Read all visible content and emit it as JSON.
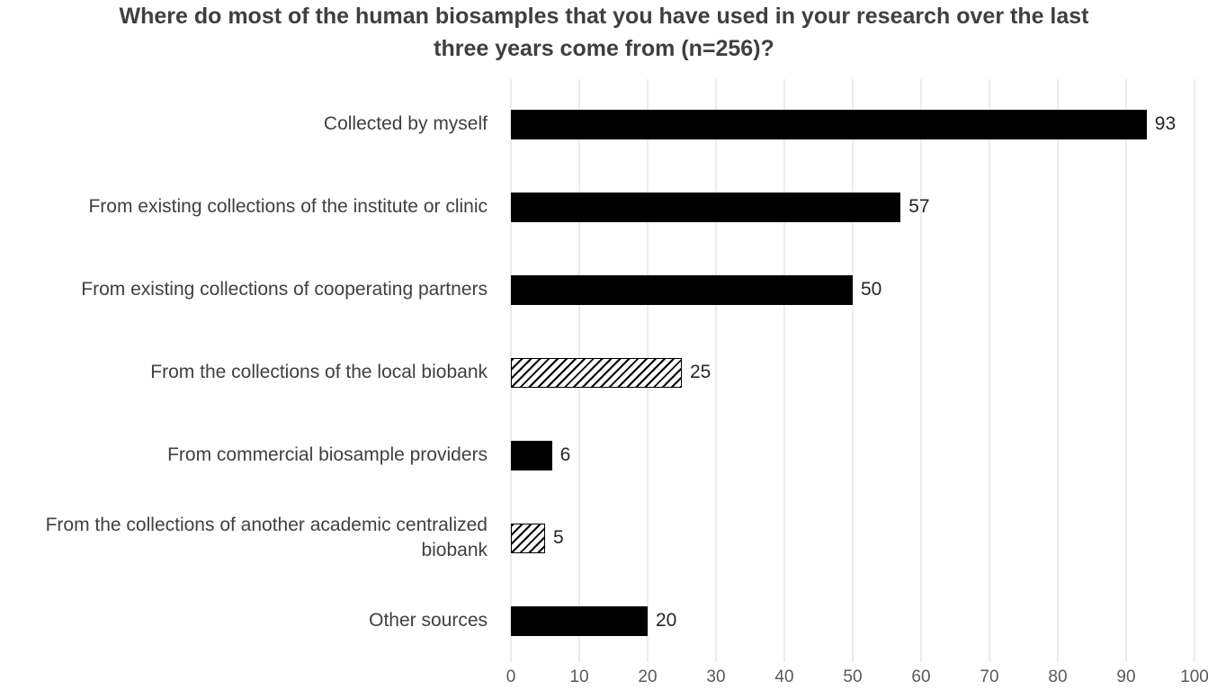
{
  "chart_data": {
    "type": "bar",
    "orientation": "horizontal",
    "title": "Where do most of the human biosamples that you have used in your research over the last three years come from (n=256)?",
    "categories": [
      "Collected by myself",
      "From existing collections of the institute or clinic",
      "From existing collections of cooperating partners",
      "From the collections of the local biobank",
      "From commercial biosample providers",
      "From the collections of another academic centralized biobank",
      "Other sources"
    ],
    "values": [
      93,
      57,
      50,
      25,
      6,
      5,
      20
    ],
    "bar_styles": [
      "solid",
      "solid",
      "solid",
      "hatched",
      "solid",
      "hatched",
      "solid"
    ],
    "xlim": [
      0,
      100
    ],
    "x_ticks": [
      0,
      10,
      20,
      30,
      40,
      50,
      60,
      70,
      80,
      90,
      100
    ],
    "grid": "vertical",
    "legend": "none",
    "colors": {
      "bar": "#000000",
      "gridline": "#d9d9d9",
      "title_text": "#3f3f3f",
      "label_text": "#404040",
      "tick_text": "#595959"
    }
  }
}
